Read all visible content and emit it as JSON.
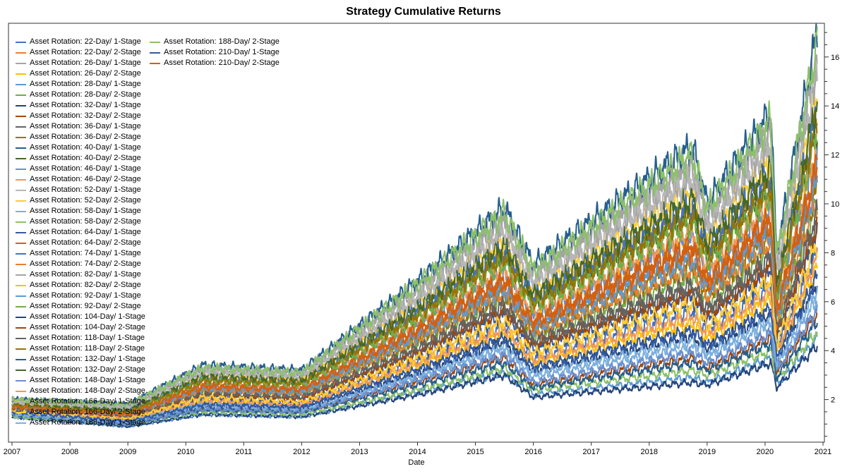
{
  "chart_data": {
    "type": "line",
    "title": "Strategy Cumulative Returns",
    "xlabel": "Date",
    "ylabel": "",
    "xlim": [
      2007,
      2021
    ],
    "ylim": [
      0.3,
      17.3
    ],
    "x_ticks": [
      "2007",
      "2008",
      "2009",
      "2010",
      "2011",
      "2012",
      "2013",
      "2014",
      "2015",
      "2016",
      "2017",
      "2018",
      "2019",
      "2020",
      "2021"
    ],
    "y_ticks": [
      "2",
      "4",
      "6",
      "8",
      "10",
      "12",
      "14",
      "16"
    ],
    "y_axis_side": "right",
    "grid": false,
    "legend_placement": "top-left",
    "x": [
      2007,
      2009,
      2010.3,
      2012,
      2014,
      2015.5,
      2016,
      2018.75,
      2019,
      2020.1,
      2020.2,
      2020.9
    ],
    "series": [
      {
        "name": "Asset Rotation: 22-Day/ 1-Stage",
        "color": "#4472C4",
        "values": [
          1.5,
          1.2,
          2.0,
          1.9,
          3.6,
          5.0,
          3.7,
          5.6,
          4.8,
          6.6,
          4.2,
          8.0
        ]
      },
      {
        "name": "Asset Rotation: 22-Day/ 2-Stage",
        "color": "#ED7D31",
        "values": [
          1.7,
          1.4,
          2.5,
          2.3,
          4.7,
          6.7,
          5.1,
          8.0,
          6.7,
          9.1,
          5.5,
          11.2
        ]
      },
      {
        "name": "Asset Rotation: 26-Day/ 1-Stage",
        "color": "#A5A5A5",
        "values": [
          2.0,
          1.8,
          3.3,
          3.1,
          6.6,
          9.5,
          7.2,
          11.8,
          9.6,
          13.2,
          7.7,
          16.4
        ]
      },
      {
        "name": "Asset Rotation: 26-Day/ 2-Stage",
        "color": "#FFC000",
        "values": [
          1.7,
          1.5,
          2.6,
          2.5,
          5.1,
          7.2,
          5.4,
          8.7,
          7.2,
          9.8,
          5.9,
          12.1
        ]
      },
      {
        "name": "Asset Rotation: 28-Day/ 1-Stage",
        "color": "#5B9BD5",
        "values": [
          1.3,
          0.9,
          1.4,
          1.3,
          2.3,
          3.1,
          2.2,
          2.9,
          2.7,
          3.7,
          2.6,
          4.5
        ]
      },
      {
        "name": "Asset Rotation: 28-Day/ 2-Stage",
        "color": "#70AD47",
        "values": [
          1.6,
          1.3,
          2.3,
          2.2,
          4.3,
          6.1,
          4.5,
          7.0,
          5.9,
          8.1,
          5.0,
          10.0
        ]
      },
      {
        "name": "Asset Rotation: 32-Day/ 1-Stage",
        "color": "#264478",
        "values": [
          1.3,
          0.9,
          1.4,
          1.3,
          2.2,
          3.0,
          2.1,
          2.7,
          2.6,
          3.5,
          2.5,
          4.2
        ]
      },
      {
        "name": "Asset Rotation: 32-Day/ 2-Stage",
        "color": "#9E480E",
        "values": [
          1.4,
          1.0,
          1.6,
          1.5,
          2.7,
          3.7,
          2.6,
          3.7,
          3.3,
          4.5,
          3.1,
          5.5
        ]
      },
      {
        "name": "Asset Rotation: 36-Day/ 1-Stage",
        "color": "#636363",
        "values": [
          1.6,
          1.3,
          2.2,
          2.1,
          4.0,
          5.7,
          4.3,
          6.5,
          5.6,
          7.6,
          4.7,
          9.3
        ]
      },
      {
        "name": "Asset Rotation: 36-Day/ 2-Stage",
        "color": "#997300",
        "values": [
          1.6,
          1.4,
          2.4,
          2.3,
          4.5,
          6.4,
          4.8,
          7.5,
          6.3,
          8.6,
          5.3,
          10.6
        ]
      },
      {
        "name": "Asset Rotation: 40-Day/ 1-Stage",
        "color": "#255E91",
        "values": [
          2.0,
          1.8,
          3.4,
          3.2,
          6.8,
          9.8,
          7.5,
          12.3,
          10.0,
          13.7,
          8.0,
          17.0
        ]
      },
      {
        "name": "Asset Rotation: 40-Day/ 2-Stage",
        "color": "#43682B",
        "values": [
          1.8,
          1.5,
          2.8,
          2.6,
          5.4,
          7.8,
          5.9,
          9.4,
          7.8,
          10.6,
          6.4,
          13.2
        ]
      },
      {
        "name": "Asset Rotation: 46-Day/ 1-Stage",
        "color": "#698ED0",
        "values": [
          1.7,
          1.4,
          2.6,
          2.4,
          5.0,
          7.1,
          5.3,
          8.5,
          7.0,
          9.6,
          5.8,
          11.9
        ]
      },
      {
        "name": "Asset Rotation: 46-Day/ 2-Stage",
        "color": "#F1975A",
        "values": [
          1.8,
          1.5,
          2.7,
          2.5,
          5.2,
          7.4,
          5.6,
          8.9,
          7.4,
          10.1,
          6.1,
          12.5
        ]
      },
      {
        "name": "Asset Rotation: 52-Day/ 1-Stage",
        "color": "#B7B7B7",
        "values": [
          1.9,
          1.7,
          3.1,
          2.9,
          6.1,
          8.8,
          6.7,
          10.9,
          8.9,
          12.2,
          7.2,
          15.1
        ]
      },
      {
        "name": "Asset Rotation: 52-Day/ 2-Stage",
        "color": "#FFCD33",
        "values": [
          1.9,
          1.6,
          3.0,
          2.8,
          5.9,
          8.4,
          6.4,
          10.4,
          8.5,
          11.7,
          6.9,
          14.4
        ]
      },
      {
        "name": "Asset Rotation: 58-Day/ 1-Stage",
        "color": "#7CAFDD",
        "values": [
          1.4,
          1.0,
          1.7,
          1.6,
          2.9,
          4.0,
          2.9,
          4.1,
          3.7,
          5.0,
          3.3,
          6.1
        ]
      },
      {
        "name": "Asset Rotation: 58-Day/ 2-Stage",
        "color": "#8CC168",
        "values": [
          1.3,
          1.0,
          1.5,
          1.4,
          2.4,
          3.3,
          2.4,
          3.2,
          3.0,
          4.0,
          2.8,
          4.8
        ]
      },
      {
        "name": "Asset Rotation: 64-Day/ 1-Stage",
        "color": "#335AA1",
        "values": [
          1.5,
          1.2,
          2.1,
          2.0,
          3.8,
          5.4,
          4.0,
          6.1,
          5.2,
          7.1,
          4.4,
          8.7
        ]
      },
      {
        "name": "Asset Rotation: 64-Day/ 2-Stage",
        "color": "#D26012",
        "values": [
          1.7,
          1.4,
          2.6,
          2.4,
          4.9,
          6.9,
          5.2,
          8.3,
          6.9,
          9.4,
          5.7,
          11.6
        ]
      },
      {
        "name": "Asset Rotation: 74-Day/ 1-Stage",
        "color": "#4472C4",
        "values": [
          1.8,
          1.6,
          2.9,
          2.7,
          5.7,
          8.1,
          6.2,
          9.9,
          8.2,
          11.2,
          6.6,
          13.8
        ]
      },
      {
        "name": "Asset Rotation: 74-Day/ 2-Stage",
        "color": "#ED7D31",
        "values": [
          1.6,
          1.3,
          2.4,
          2.2,
          4.4,
          6.3,
          4.7,
          7.3,
          6.2,
          8.4,
          5.1,
          10.3
        ]
      },
      {
        "name": "Asset Rotation: 82-Day/ 1-Stage",
        "color": "#A5A5A5",
        "values": [
          1.9,
          1.7,
          3.2,
          3.0,
          6.3,
          9.1,
          7.0,
          11.3,
          9.3,
          12.7,
          7.5,
          15.7
        ]
      },
      {
        "name": "Asset Rotation: 82-Day/ 2-Stage",
        "color": "#FFC000",
        "values": [
          1.5,
          1.1,
          1.9,
          1.8,
          3.4,
          4.7,
          3.5,
          5.1,
          4.5,
          6.1,
          3.9,
          7.4
        ]
      },
      {
        "name": "Asset Rotation: 92-Day/ 1-Stage",
        "color": "#5B9BD5",
        "values": [
          1.7,
          1.4,
          2.4,
          2.3,
          4.6,
          6.5,
          4.9,
          7.7,
          6.5,
          8.8,
          5.4,
          10.9
        ]
      },
      {
        "name": "Asset Rotation: 92-Day/ 2-Stage",
        "color": "#70AD47",
        "values": [
          1.8,
          1.5,
          2.8,
          2.6,
          5.3,
          7.6,
          5.8,
          9.2,
          7.6,
          10.4,
          6.2,
          12.9
        ]
      },
      {
        "name": "Asset Rotation: 104-Day/ 1-Stage",
        "color": "#264478",
        "values": [
          1.4,
          1.1,
          1.8,
          1.7,
          3.1,
          4.4,
          3.2,
          4.6,
          4.1,
          5.5,
          3.6,
          6.8
        ]
      },
      {
        "name": "Asset Rotation: 104-Day/ 2-Stage",
        "color": "#9E480E",
        "values": [
          1.6,
          1.2,
          2.2,
          2.0,
          3.9,
          5.6,
          4.2,
          6.3,
          5.4,
          7.4,
          4.6,
          9.1
        ]
      },
      {
        "name": "Asset Rotation: 118-Day/ 1-Stage",
        "color": "#636363",
        "values": [
          1.6,
          1.3,
          2.2,
          2.1,
          4.1,
          5.9,
          4.4,
          6.7,
          5.7,
          7.8,
          4.8,
          9.6
        ]
      },
      {
        "name": "Asset Rotation: 118-Day/ 2-Stage",
        "color": "#997300",
        "values": [
          1.8,
          1.5,
          2.8,
          2.7,
          5.5,
          7.9,
          6.0,
          9.6,
          7.9,
          10.8,
          6.5,
          13.4
        ]
      },
      {
        "name": "Asset Rotation: 132-Day/ 1-Stage",
        "color": "#255E91",
        "values": [
          1.4,
          1.0,
          1.6,
          1.5,
          2.6,
          3.5,
          2.5,
          3.5,
          3.2,
          4.3,
          2.9,
          5.2
        ]
      },
      {
        "name": "Asset Rotation: 132-Day/ 2-Stage",
        "color": "#43682B",
        "values": [
          1.8,
          1.6,
          3.0,
          2.8,
          5.8,
          8.3,
          6.3,
          10.2,
          8.4,
          11.5,
          6.8,
          14.2
        ]
      },
      {
        "name": "Asset Rotation: 148-Day/ 1-Stage",
        "color": "#698ED0",
        "values": [
          1.4,
          1.0,
          1.6,
          1.5,
          2.8,
          3.8,
          2.7,
          3.9,
          3.5,
          4.7,
          3.2,
          5.7
        ]
      },
      {
        "name": "Asset Rotation: 148-Day/ 2-Stage",
        "color": "#F1975A",
        "values": [
          1.5,
          1.2,
          2.0,
          1.8,
          3.5,
          4.9,
          3.6,
          5.4,
          4.7,
          6.4,
          4.0,
          7.8
        ]
      },
      {
        "name": "Asset Rotation: 166-Day/ 1-Stage",
        "color": "#B7B7B7",
        "values": [
          1.9,
          1.7,
          3.2,
          3.0,
          6.2,
          9.0,
          6.9,
          11.1,
          9.1,
          12.5,
          7.3,
          15.5
        ]
      },
      {
        "name": "Asset Rotation: 166-Day/ 2-Stage",
        "color": "#FFCD33",
        "values": [
          1.5,
          1.2,
          2.1,
          1.9,
          3.7,
          5.2,
          3.9,
          5.9,
          5.0,
          6.9,
          4.3,
          8.4
        ]
      },
      {
        "name": "Asset Rotation: 188-Day/ 1-Stage",
        "color": "#7CAFDD",
        "values": [
          1.4,
          1.1,
          1.8,
          1.6,
          3.0,
          4.2,
          3.1,
          4.4,
          3.9,
          5.3,
          3.5,
          6.5
        ]
      },
      {
        "name": "Asset Rotation: 188-Day/ 2-Stage",
        "color": "#8CC168",
        "values": [
          2.0,
          1.8,
          3.3,
          3.1,
          6.7,
          9.6,
          7.3,
          12.0,
          9.8,
          13.4,
          7.8,
          16.6
        ]
      },
      {
        "name": "Asset Rotation: 210-Day/ 1-Stage",
        "color": "#335AA1",
        "values": [
          1.5,
          1.1,
          1.8,
          1.7,
          3.2,
          4.5,
          3.3,
          4.8,
          4.2,
          5.7,
          3.7,
          7.0
        ]
      },
      {
        "name": "Asset Rotation: 210-Day/ 2-Stage",
        "color": "#D26012",
        "values": [
          1.7,
          1.4,
          2.5,
          2.4,
          4.8,
          6.8,
          5.1,
          8.1,
          6.7,
          9.2,
          5.6,
          11.4
        ]
      }
    ]
  }
}
